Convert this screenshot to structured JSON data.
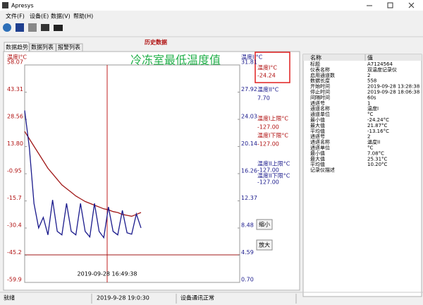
{
  "window": {
    "title": "Apresys"
  },
  "menu": [
    "文件(F)",
    "设备(E)",
    "数据(V)",
    "帮助(H)"
  ],
  "tabs": [
    "数据趋势",
    "数据列表",
    "报警列表"
  ],
  "chart": {
    "type": "line",
    "title": "历史数据",
    "annotation": "冷冻室最低温度值",
    "y_label": "温度I°C",
    "y2_label": "温度II°C",
    "ylim": [
      -59.9,
      58.07
    ],
    "yticks": [
      58.07,
      43.31,
      28.56,
      {
        "value": 13.8,
        "label": "13.80"
      },
      -0.95,
      -15.7,
      -30.4,
      -45.2,
      -59.9
    ],
    "y2lim": [
      0.7,
      31.81
    ],
    "y2ticks": [
      31.81,
      27.92,
      24.03,
      20.14,
      16.26,
      12.37,
      8.48,
      4.59,
      {
        "value": 0.7,
        "label": "0.70"
      }
    ],
    "cursor_label": "2019-09-28 16:49:38",
    "series": [
      {
        "color": "#a01818",
        "values": [
          22,
          18,
          14,
          10,
          6,
          2,
          -1,
          -4,
          -7,
          -9,
          -11,
          -13,
          -14.5,
          -16,
          -17,
          -18,
          -19,
          -20,
          -20.5,
          -21.5,
          -22,
          -23,
          -23.5,
          -24,
          -23,
          -22
        ]
      },
      {
        "color": "#1a1a8c",
        "axis": "y2",
        "values": [
          25.3,
          20,
          12,
          8.5,
          10,
          7.5,
          12.5,
          8,
          7.5,
          12,
          8,
          7.5,
          12,
          8,
          7.2,
          12,
          8,
          7.1,
          11.5,
          8,
          7.5,
          11,
          7.8,
          7.6,
          10.5,
          8.5
        ]
      }
    ]
  },
  "readouts": [
    {
      "label": "温度I°C",
      "value": "-24.24"
    },
    {
      "label": "温度II°C",
      "value": "7.70"
    },
    {
      "label": "温度I上限°C",
      "value": "-127.00"
    },
    {
      "label": "温度I下限°C",
      "value": "-127.00"
    },
    {
      "label": "温度II上限°C",
      "value": "-127.00"
    },
    {
      "label": "温度II下限°C",
      "value": "-127.00"
    }
  ],
  "buttons": [
    "缩小",
    "放大"
  ],
  "properties": {
    "headers": [
      "名称",
      "值"
    ],
    "rows": [
      [
        "标题",
        "A7124564"
      ],
      [
        "仪表名称",
        "双温度记录仪"
      ],
      [
        "启用通道数",
        "2"
      ],
      [
        "数据长度",
        "558"
      ],
      [
        "开始时间",
        "2019-09-28 13:28:38"
      ],
      [
        "停止时间",
        "2019-09-28 18:06:38"
      ],
      [
        "间隔时间",
        "60s"
      ],
      [
        "通道号",
        "1"
      ],
      [
        "通道名称",
        "温度I"
      ],
      [
        "通道单位",
        "°C"
      ],
      [
        "最小值",
        "-24.24°C"
      ],
      [
        "最大值",
        "21.87°C"
      ],
      [
        "平均值",
        "-13.16°C"
      ],
      [
        "通道号",
        "2"
      ],
      [
        "通道名称",
        "温度II"
      ],
      [
        "通道单位",
        "°C"
      ],
      [
        "最小值",
        "7.08°C"
      ],
      [
        "最大值",
        "25.31°C"
      ],
      [
        "平均值",
        "10.20°C"
      ],
      [
        "记录仪描述"
      ]
    ]
  },
  "status": [
    "就绪",
    "2019-9-28 19:0:30",
    "设备通讯正常"
  ]
}
